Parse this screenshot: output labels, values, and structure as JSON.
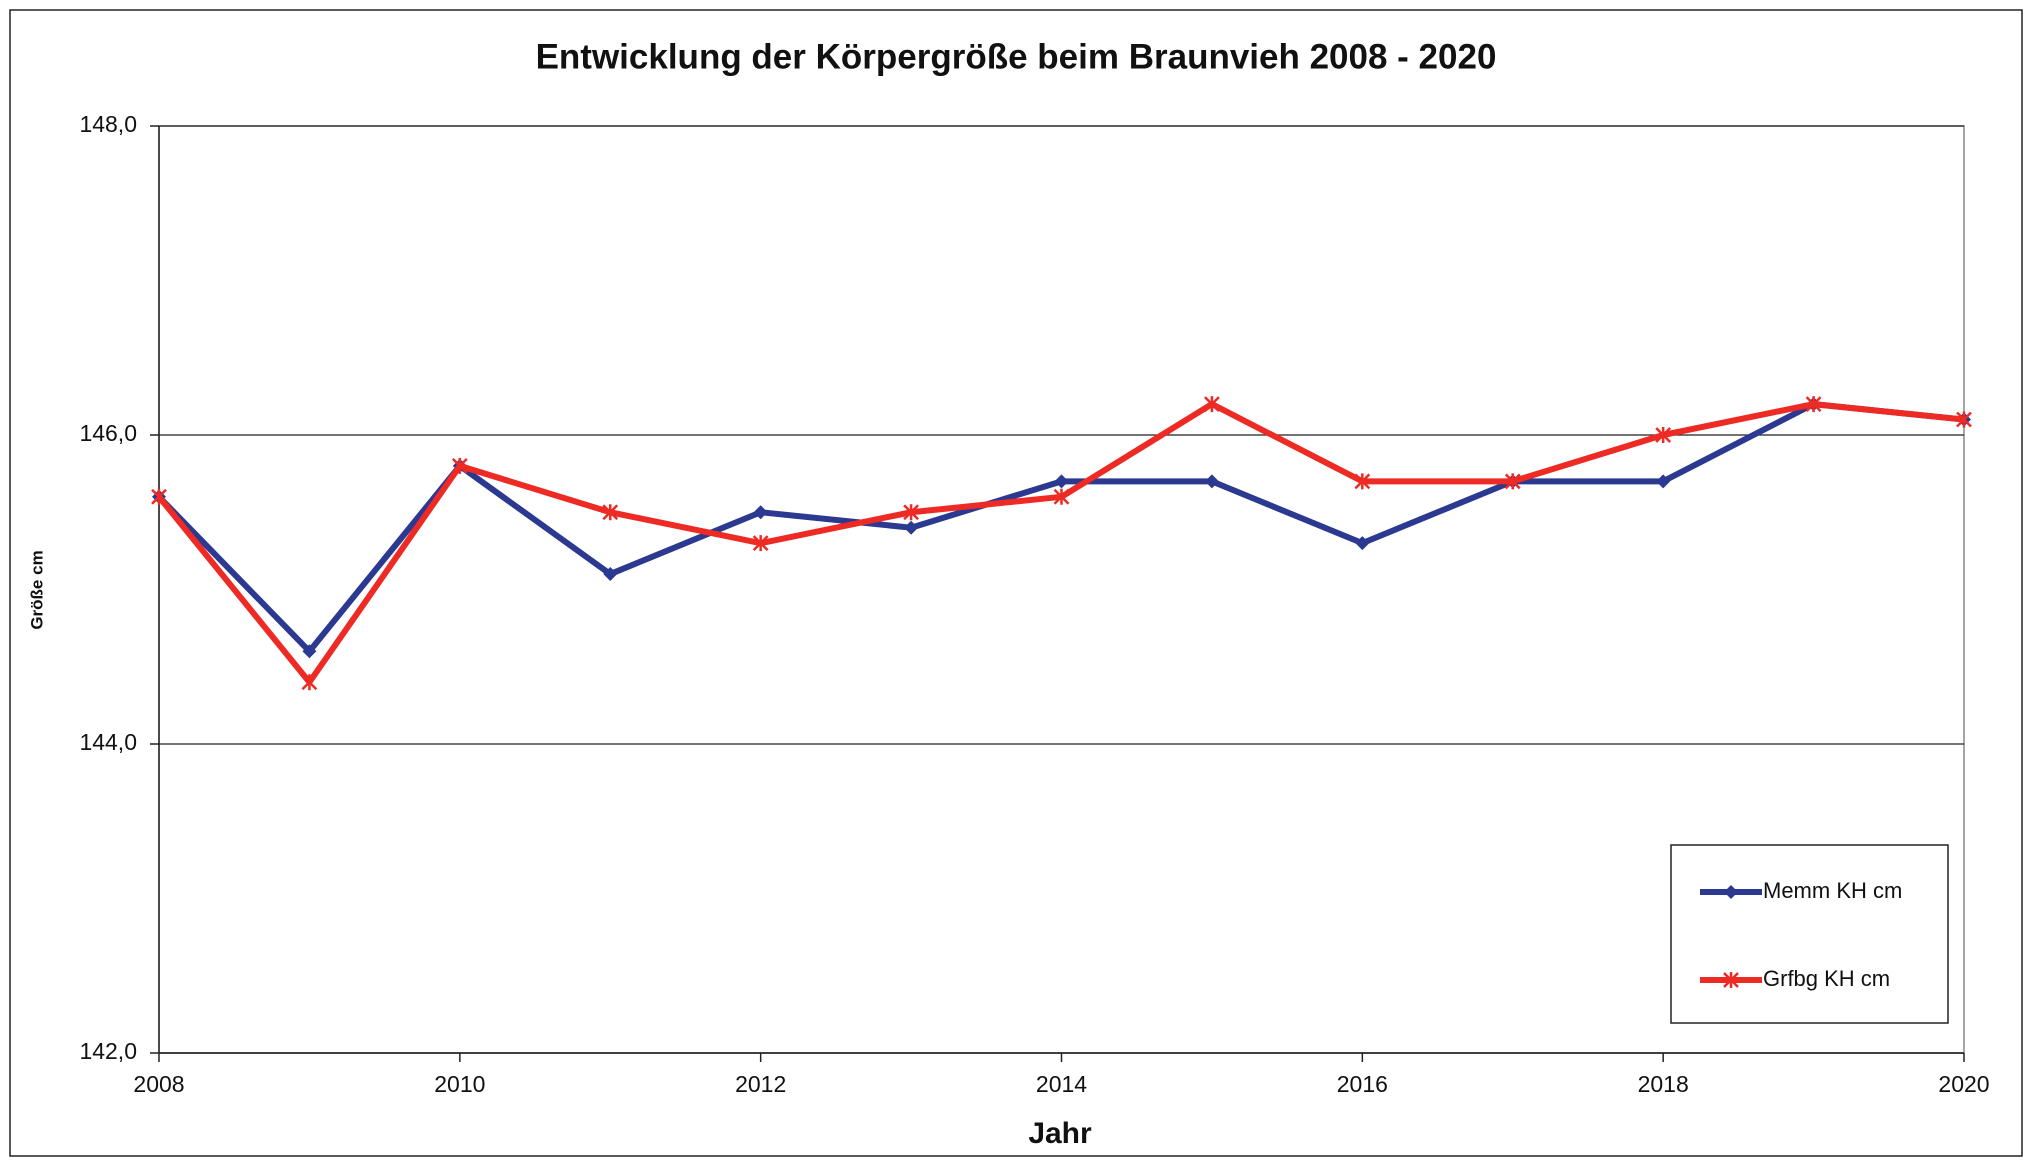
{
  "chart_data": {
    "type": "line",
    "title": "Entwicklung der Körpergröße beim Braunvieh 2008 - 2020",
    "x_label": "Jahr",
    "y_label": "Größe cm",
    "x": [
      2008,
      2009,
      2010,
      2011,
      2012,
      2013,
      2014,
      2015,
      2016,
      2017,
      2018,
      2019,
      2020
    ],
    "series": [
      {
        "name": "Memm KH cm",
        "color": "#2b3990",
        "marker": "diamond",
        "values": [
          145.6,
          144.6,
          145.8,
          145.1,
          145.5,
          145.4,
          145.7,
          145.7,
          145.3,
          145.7,
          145.7,
          146.2,
          146.1
        ]
      },
      {
        "name": "Grfbg KH cm",
        "color": "#ee2a24",
        "marker": "star",
        "values": [
          145.6,
          144.4,
          145.8,
          145.5,
          145.3,
          145.5,
          145.6,
          146.2,
          145.7,
          145.7,
          146.0,
          146.2,
          146.1
        ]
      }
    ],
    "xlim": [
      2008,
      2020
    ],
    "xticks": [
      2008,
      2010,
      2012,
      2014,
      2016,
      2018,
      2020
    ],
    "ylim": [
      142,
      148
    ],
    "yticks": [
      {
        "value": 142,
        "label": "142,0"
      },
      {
        "value": 144,
        "label": "144,0"
      },
      {
        "value": 146,
        "label": "146,0"
      },
      {
        "value": 148,
        "label": "148,0"
      }
    ],
    "grid": true,
    "legend": "lower right"
  }
}
